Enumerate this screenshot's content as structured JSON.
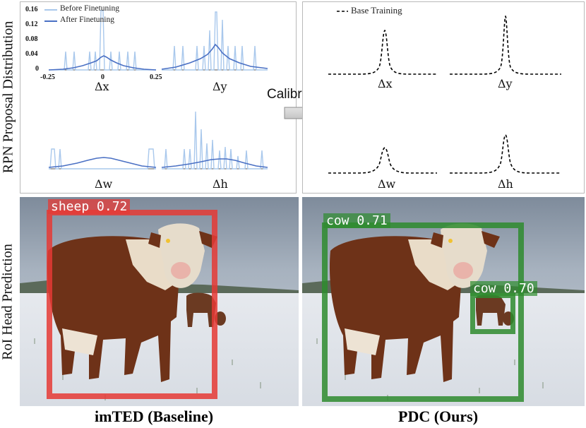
{
  "side_labels": {
    "top": "RPN Proposal Distribution",
    "bottom": "RoI Head Prediction"
  },
  "left_panel": {
    "legend": {
      "before": "Before Finetuning",
      "after": "After Finetuning"
    },
    "y_ticks": [
      "0.16",
      "0.12",
      "0.08",
      "0.04",
      "0"
    ],
    "x_ticks": [
      "-0.25",
      "0",
      "0.25"
    ],
    "plot_labels": [
      "Δx",
      "Δy",
      "Δw",
      "Δh"
    ],
    "colors": {
      "before": "#a9c8ec",
      "after": "#4a70c4"
    }
  },
  "right_panel": {
    "legend": "Base Training",
    "plot_labels": [
      "Δx",
      "Δy",
      "Δw",
      "Δh"
    ]
  },
  "arrow": {
    "label": "Calibration"
  },
  "detections": {
    "baseline": {
      "label": "sheep 0.72",
      "color": "#e53935"
    },
    "ours": [
      {
        "label": "cow 0.71",
        "color": "#2e8b2e"
      },
      {
        "label": "cow 0.70",
        "color": "#2e8b2e"
      }
    ]
  },
  "captions": {
    "left": "imTED (Baseline)",
    "right": "PDC (Ours)"
  }
}
